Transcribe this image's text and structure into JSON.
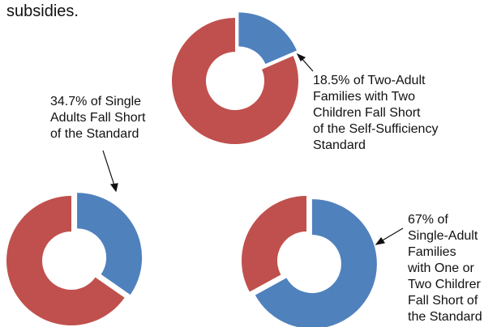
{
  "intro_text": "subsidies.",
  "chart_data": [
    {
      "type": "pie",
      "donut": true,
      "values": [
        18.5,
        81.5
      ],
      "colors": [
        "#4f81bd",
        "#c0504d"
      ],
      "annotation": [
        "18.5% of Two-Adult",
        "Families with Two",
        "Children Fall Short",
        "of the Self-Sufficiency",
        "Standard"
      ]
    },
    {
      "type": "pie",
      "donut": true,
      "values": [
        34.7,
        65.3
      ],
      "colors": [
        "#4f81bd",
        "#c0504d"
      ],
      "annotation": [
        "34.7% of Single",
        "Adults Fall Short",
        "of the Standard"
      ]
    },
    {
      "type": "pie",
      "donut": true,
      "values": [
        67,
        33
      ],
      "colors": [
        "#4f81bd",
        "#c0504d"
      ],
      "annotation": [
        "67% of",
        "Single-Adult",
        "Families",
        "with One or",
        "Two Childrer",
        "Fall Short of",
        "the Standard"
      ]
    }
  ]
}
